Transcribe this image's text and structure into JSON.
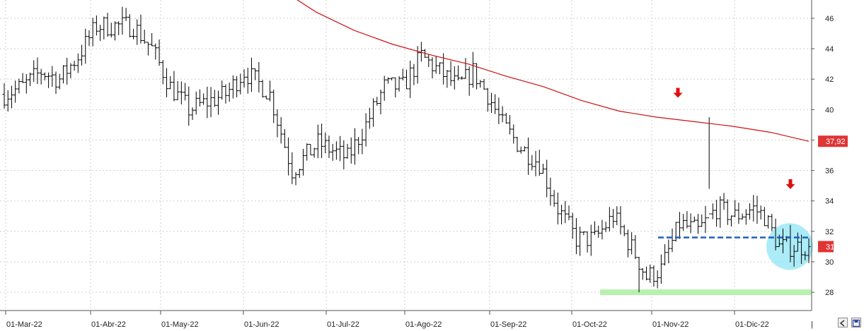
{
  "chart_data": {
    "type": "ohlc",
    "x_tick_labels": [
      "01-Mar-22",
      "01-Abr-22",
      "01-May-22",
      "01-Jun-22",
      "01-Jul-22",
      "01-Ago-22",
      "01-Sep-22",
      "01-Oct-22",
      "01-Nov-22",
      "01-Dic-22"
    ],
    "y_ticks": [
      28,
      30,
      32,
      34,
      36,
      38,
      40,
      42,
      44,
      46
    ],
    "ylim": [
      26.8,
      47.2
    ],
    "grid": true,
    "colors": {
      "bars": "#000000",
      "moving_average": "#cc1111",
      "support_band": "#b8f0b0",
      "dashed_level": "#1f5fbf",
      "highlight_circle": "#8fe6f5",
      "arrows": "#e01010",
      "price_tag": "#e03535"
    },
    "moving_average": {
      "last_value_label": "37,92",
      "values": [
        49.0,
        48.0,
        46.4,
        45.2,
        44.3,
        43.6,
        43.0,
        42.2,
        41.5,
        40.6,
        39.9,
        39.5,
        39.2,
        38.9,
        38.5,
        37.92
      ]
    },
    "current_price_label": "31",
    "support_level": 28.0,
    "resistance_level": 31.6,
    "highlight_center_price": 31.0,
    "annotation_arrow_prices": [
      40.5,
      34.5
    ],
    "ohlc_anchors": [
      [
        0,
        41.0
      ],
      [
        5,
        41.5
      ],
      [
        10,
        42.5
      ],
      [
        15,
        42.0
      ],
      [
        20,
        43.5
      ],
      [
        25,
        45.5
      ],
      [
        30,
        45.5
      ],
      [
        35,
        45.5
      ],
      [
        40,
        44.0
      ],
      [
        45,
        41.5
      ],
      [
        50,
        40.0
      ],
      [
        55,
        40.5
      ],
      [
        60,
        41.0
      ],
      [
        65,
        42.5
      ],
      [
        70,
        41.5
      ],
      [
        72,
        41.0
      ],
      [
        78,
        36.0
      ],
      [
        85,
        37.8
      ],
      [
        93,
        36.8
      ],
      [
        98,
        39.0
      ],
      [
        103,
        41.5
      ],
      [
        108,
        41.5
      ],
      [
        113,
        43.5
      ],
      [
        118,
        42.5
      ],
      [
        123,
        41.5
      ],
      [
        127,
        42.5
      ],
      [
        131,
        41.0
      ],
      [
        135,
        39.0
      ],
      [
        140,
        37.5
      ],
      [
        145,
        36.5
      ],
      [
        150,
        33.5
      ],
      [
        155,
        31.5
      ],
      [
        160,
        31.5
      ],
      [
        165,
        33.0
      ],
      [
        171,
        30.5
      ],
      [
        174,
        29.0
      ],
      [
        178,
        29.5
      ],
      [
        183,
        32.5
      ],
      [
        188,
        32.0
      ],
      [
        193,
        33.5
      ],
      [
        198,
        33.0
      ],
      [
        203,
        33.5
      ],
      [
        206,
        33.0
      ],
      [
        210,
        31.0
      ],
      [
        214,
        31.0
      ],
      [
        218,
        31.0
      ]
    ]
  },
  "ui": {
    "scroll_marker": "|"
  }
}
